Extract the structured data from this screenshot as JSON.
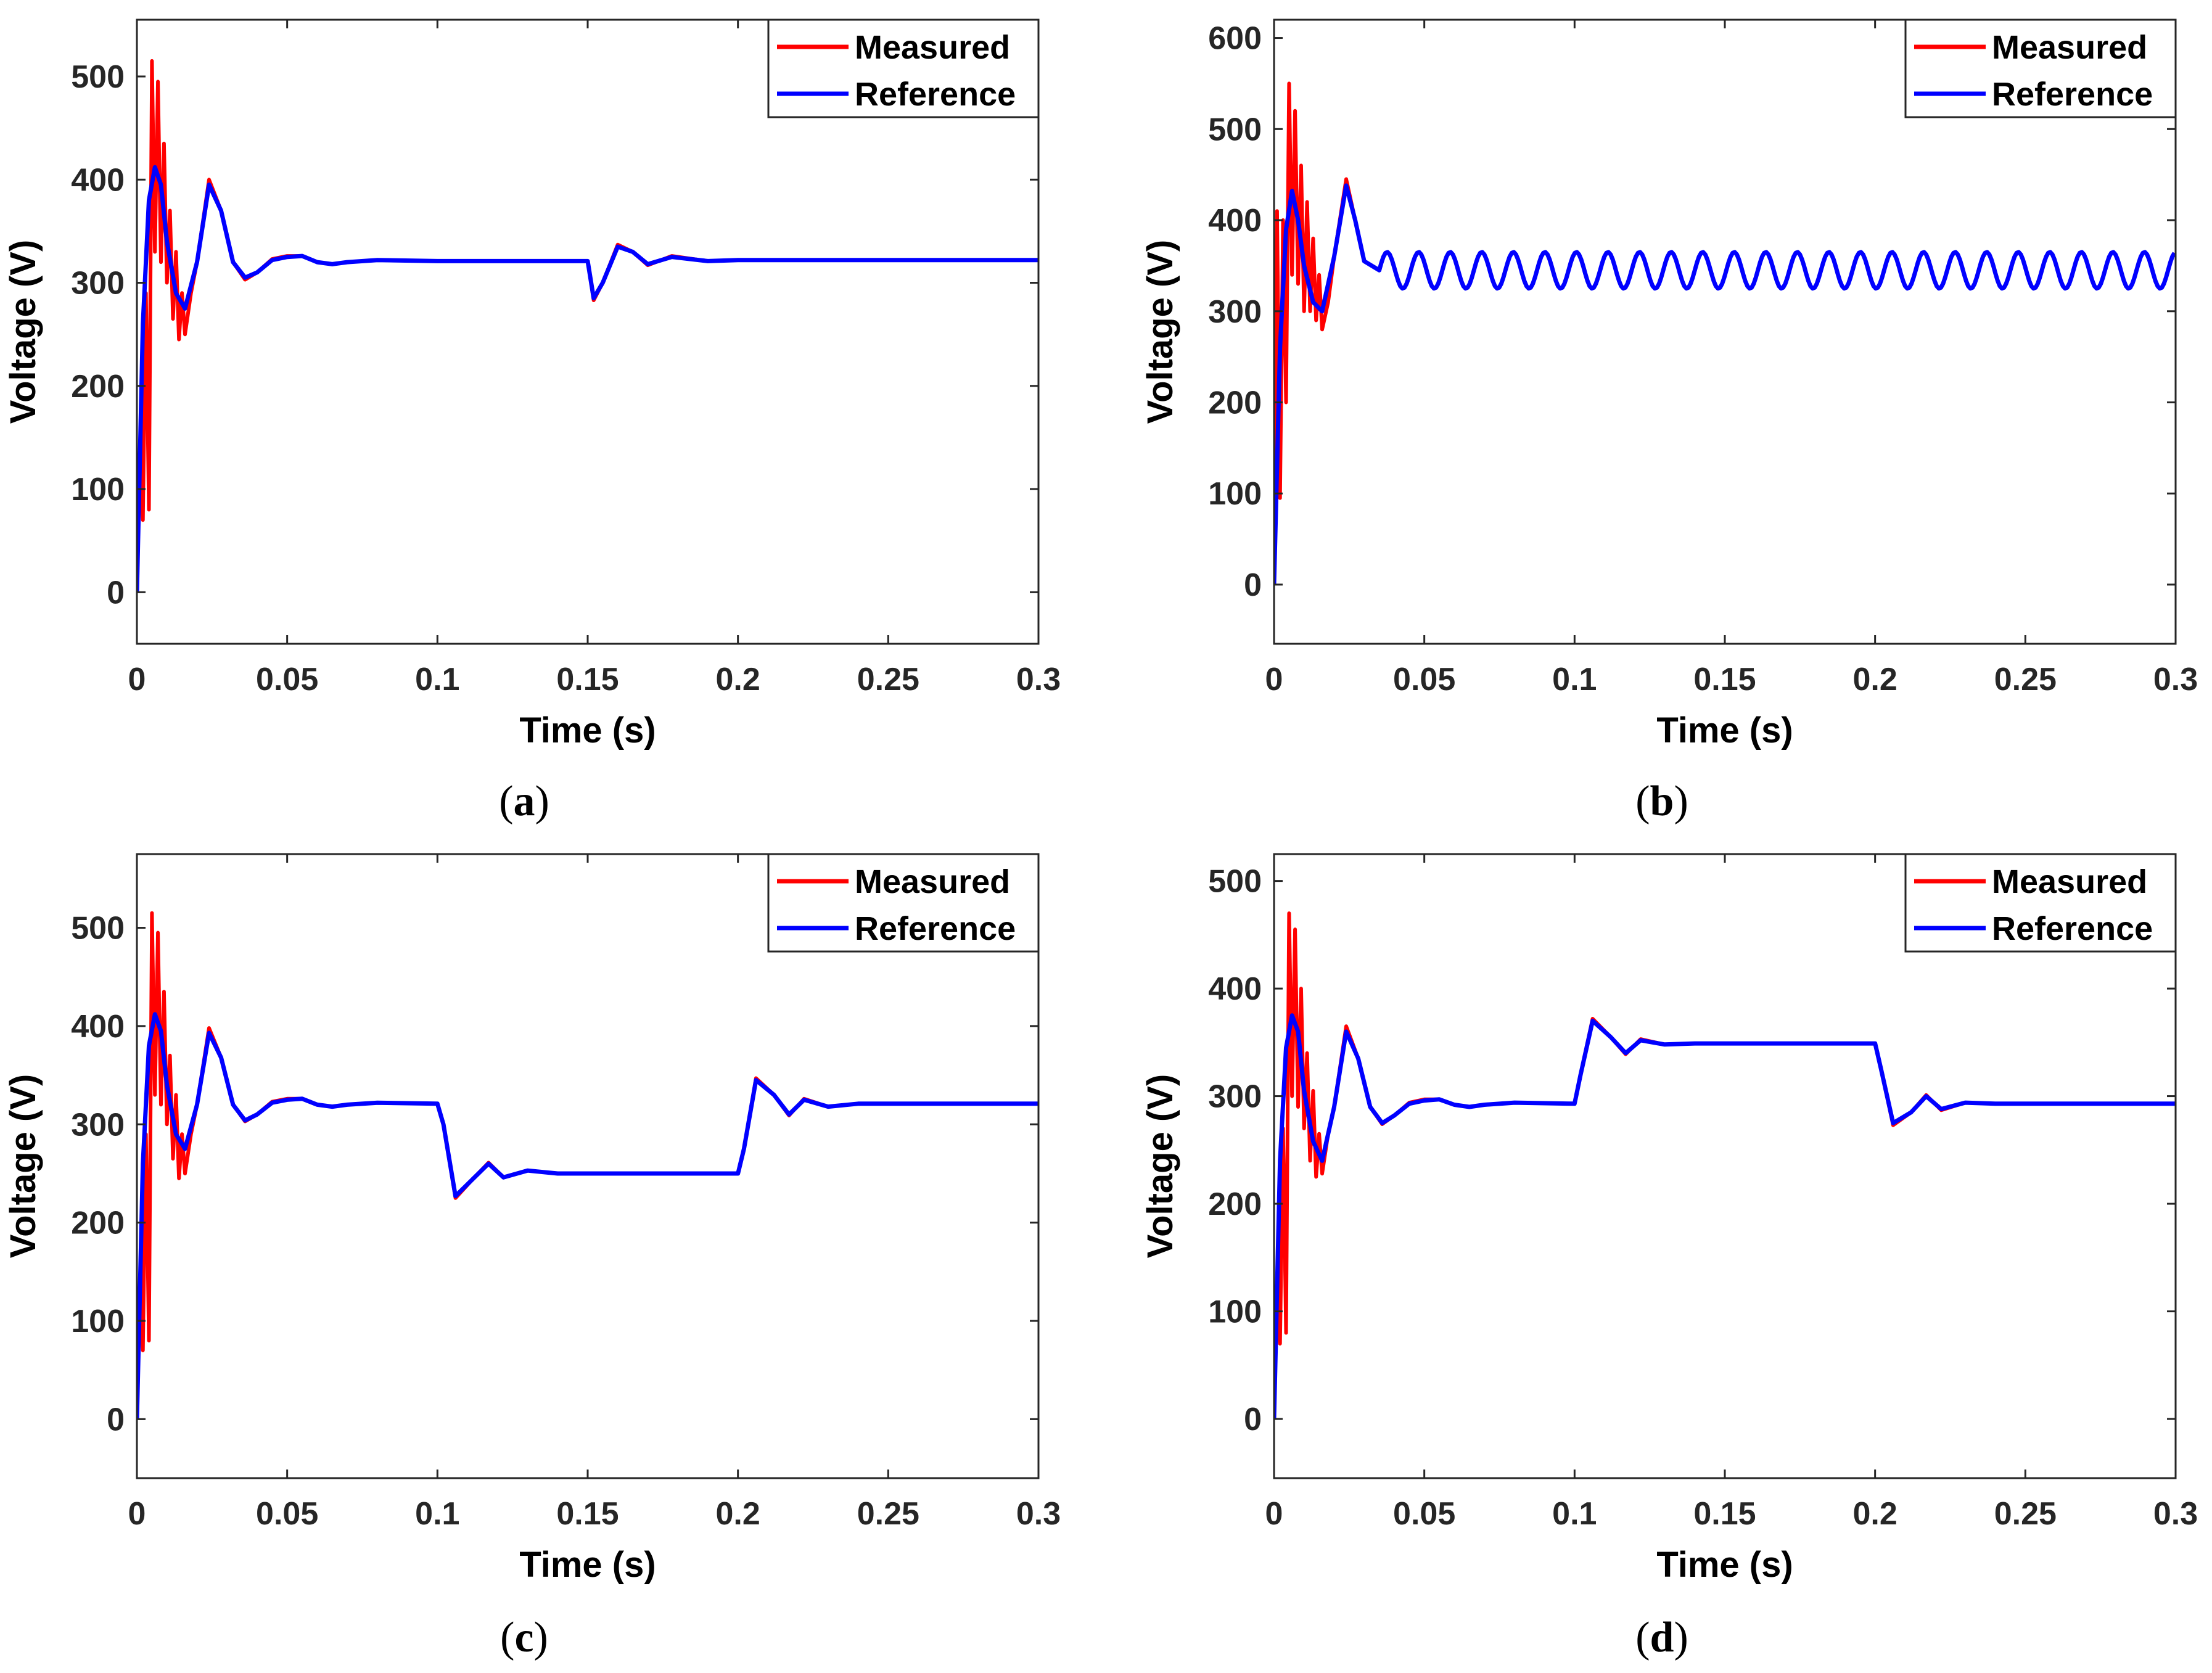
{
  "colors": {
    "measured": "#ff0000",
    "reference": "#0000ff",
    "axes": "#262626",
    "background": "#ffffff"
  },
  "chart_data": [
    {
      "id": "a",
      "type": "line",
      "caption": {
        "open": "(",
        "letter": "a",
        "close": ")"
      },
      "xlabel": "Time (s)",
      "ylabel": "Voltage (V)",
      "xlim": [
        0,
        0.3
      ],
      "ylim": [
        -50,
        555
      ],
      "xticks": [
        0,
        0.05,
        0.1,
        0.15,
        0.2,
        0.25,
        0.3
      ],
      "xtick_labels": [
        "0",
        "0.05",
        "0.1",
        "0.15",
        "0.2",
        "0.25",
        "0.3"
      ],
      "yticks": [
        0,
        100,
        200,
        300,
        400,
        500
      ],
      "ytick_labels": [
        "0",
        "100",
        "200",
        "300",
        "400",
        "500"
      ],
      "legend": {
        "position": "top-right",
        "entries": [
          "Measured",
          "Reference"
        ]
      },
      "series": [
        {
          "name": "Reference",
          "x": [
            0,
            0.002,
            0.004,
            0.006,
            0.008,
            0.01,
            0.013,
            0.016,
            0.02,
            0.024,
            0.028,
            0.032,
            0.036,
            0.04,
            0.045,
            0.05,
            0.055,
            0.06,
            0.065,
            0.07,
            0.08,
            0.1,
            0.14,
            0.15,
            0.152,
            0.155,
            0.16,
            0.165,
            0.17,
            0.178,
            0.19,
            0.2,
            0.3
          ],
          "values": [
            0,
            260,
            380,
            412,
            395,
            340,
            290,
            275,
            320,
            395,
            370,
            320,
            305,
            310,
            322,
            325,
            326,
            320,
            318,
            320,
            322,
            321,
            321,
            321,
            285,
            300,
            335,
            330,
            318,
            325,
            321,
            322,
            322
          ]
        },
        {
          "name": "Measured",
          "x": [
            0,
            0.001,
            0.002,
            0.003,
            0.004,
            0.005,
            0.006,
            0.007,
            0.008,
            0.009,
            0.01,
            0.011,
            0.012,
            0.013,
            0.014,
            0.015,
            0.016,
            0.018,
            0.02,
            0.024,
            0.028,
            0.032,
            0.036,
            0.04,
            0.045,
            0.05,
            0.055,
            0.06,
            0.065,
            0.07,
            0.08,
            0.1,
            0.14,
            0.15,
            0.152,
            0.155,
            0.16,
            0.165,
            0.17,
            0.178,
            0.19,
            0.2,
            0.3
          ],
          "values": [
            0,
            130,
            70,
            290,
            80,
            515,
            330,
            495,
            320,
            435,
            300,
            370,
            265,
            330,
            245,
            290,
            250,
            290,
            320,
            400,
            370,
            320,
            303,
            310,
            323,
            326,
            326,
            320,
            318,
            320,
            322,
            321,
            321,
            321,
            283,
            300,
            337,
            330,
            317,
            326,
            321,
            322,
            322
          ]
        }
      ]
    },
    {
      "id": "b",
      "type": "line",
      "caption": {
        "open": "(",
        "letter": "b",
        "close": ")"
      },
      "xlabel": "Time (s)",
      "ylabel": "Voltage (V)",
      "xlim": [
        0,
        0.3
      ],
      "ylim": [
        -65,
        620
      ],
      "xticks": [
        0,
        0.05,
        0.1,
        0.15,
        0.2,
        0.25,
        0.3
      ],
      "xtick_labels": [
        "0",
        "0.05",
        "0.1",
        "0.15",
        "0.2",
        "0.25",
        "0.3"
      ],
      "yticks": [
        0,
        100,
        200,
        300,
        400,
        500,
        600
      ],
      "ytick_labels": [
        "0",
        "100",
        "200",
        "300",
        "400",
        "500",
        "600"
      ],
      "legend": {
        "position": "top-right",
        "entries": [
          "Measured",
          "Reference"
        ]
      },
      "oscillation": {
        "start": 0.035,
        "center": 345,
        "amplitude": 20,
        "period": 0.0105
      },
      "series": [
        {
          "name": "Reference",
          "x": [
            0,
            0.002,
            0.004,
            0.006,
            0.008,
            0.01,
            0.013,
            0.016,
            0.02,
            0.024,
            0.027,
            0.03,
            0.035
          ],
          "values": [
            0,
            260,
            390,
            432,
            400,
            350,
            310,
            300,
            360,
            438,
            400,
            355,
            345
          ]
        },
        {
          "name": "Measured",
          "x": [
            0,
            0.001,
            0.002,
            0.003,
            0.004,
            0.005,
            0.006,
            0.007,
            0.008,
            0.009,
            0.01,
            0.011,
            0.012,
            0.013,
            0.014,
            0.015,
            0.016,
            0.018,
            0.02,
            0.024,
            0.027,
            0.03,
            0.035
          ],
          "values": [
            0,
            410,
            95,
            400,
            200,
            550,
            340,
            520,
            330,
            460,
            300,
            420,
            300,
            380,
            290,
            340,
            280,
            310,
            360,
            445,
            400,
            355,
            345
          ]
        }
      ]
    },
    {
      "id": "c",
      "type": "line",
      "caption": {
        "open": "(",
        "letter": "c",
        "close": ")"
      },
      "xlabel": "Time (s)",
      "ylabel": "Voltage (V)",
      "xlim": [
        0,
        0.3
      ],
      "ylim": [
        -60,
        575
      ],
      "xticks": [
        0,
        0.05,
        0.1,
        0.15,
        0.2,
        0.25,
        0.3
      ],
      "xtick_labels": [
        "0",
        "0.05",
        "0.1",
        "0.15",
        "0.2",
        "0.25",
        "0.3"
      ],
      "yticks": [
        0,
        100,
        200,
        300,
        400,
        500
      ],
      "ytick_labels": [
        "0",
        "100",
        "200",
        "300",
        "400",
        "500"
      ],
      "legend": {
        "position": "top-right",
        "entries": [
          "Measured",
          "Reference"
        ]
      },
      "series": [
        {
          "name": "Reference",
          "x": [
            0,
            0.002,
            0.004,
            0.006,
            0.008,
            0.01,
            0.013,
            0.016,
            0.02,
            0.024,
            0.028,
            0.032,
            0.036,
            0.04,
            0.045,
            0.05,
            0.055,
            0.06,
            0.065,
            0.07,
            0.08,
            0.1,
            0.102,
            0.106,
            0.112,
            0.117,
            0.122,
            0.13,
            0.14,
            0.2,
            0.202,
            0.206,
            0.212,
            0.217,
            0.222,
            0.23,
            0.24,
            0.3
          ],
          "values": [
            0,
            260,
            380,
            412,
            395,
            340,
            290,
            275,
            320,
            393,
            368,
            320,
            304,
            310,
            322,
            325,
            326,
            320,
            318,
            320,
            322,
            321,
            300,
            227,
            245,
            260,
            246,
            253,
            250,
            250,
            275,
            345,
            330,
            310,
            325,
            318,
            321,
            321
          ]
        },
        {
          "name": "Measured",
          "x": [
            0,
            0.001,
            0.002,
            0.003,
            0.004,
            0.005,
            0.006,
            0.007,
            0.008,
            0.009,
            0.01,
            0.011,
            0.012,
            0.013,
            0.014,
            0.015,
            0.016,
            0.018,
            0.02,
            0.024,
            0.028,
            0.032,
            0.036,
            0.04,
            0.045,
            0.05,
            0.055,
            0.06,
            0.065,
            0.07,
            0.08,
            0.1,
            0.102,
            0.106,
            0.112,
            0.117,
            0.122,
            0.13,
            0.14,
            0.2,
            0.202,
            0.206,
            0.212,
            0.217,
            0.222,
            0.23,
            0.24,
            0.3
          ],
          "values": [
            0,
            130,
            70,
            290,
            80,
            515,
            330,
            495,
            320,
            435,
            300,
            370,
            265,
            330,
            245,
            290,
            250,
            290,
            320,
            398,
            368,
            320,
            303,
            310,
            323,
            326,
            326,
            320,
            318,
            320,
            322,
            321,
            300,
            225,
            245,
            261,
            246,
            253,
            250,
            250,
            275,
            347,
            330,
            309,
            326,
            318,
            321,
            321
          ]
        }
      ]
    },
    {
      "id": "d",
      "type": "line",
      "caption": {
        "open": "(",
        "letter": "d",
        "close": ")"
      },
      "xlabel": "Time (s)",
      "ylabel": "Voltage (V)",
      "xlim": [
        0,
        0.3
      ],
      "ylim": [
        -55,
        525
      ],
      "xticks": [
        0,
        0.05,
        0.1,
        0.15,
        0.2,
        0.25,
        0.3
      ],
      "xtick_labels": [
        "0",
        "0.05",
        "0.1",
        "0.15",
        "0.2",
        "0.25",
        "0.3"
      ],
      "yticks": [
        0,
        100,
        200,
        300,
        400,
        500
      ],
      "ytick_labels": [
        "0",
        "100",
        "200",
        "300",
        "400",
        "500"
      ],
      "legend": {
        "position": "top-right",
        "entries": [
          "Measured",
          "Reference"
        ]
      },
      "series": [
        {
          "name": "Reference",
          "x": [
            0,
            0.002,
            0.004,
            0.006,
            0.008,
            0.01,
            0.013,
            0.016,
            0.02,
            0.024,
            0.028,
            0.032,
            0.036,
            0.04,
            0.045,
            0.05,
            0.055,
            0.06,
            0.065,
            0.07,
            0.08,
            0.1,
            0.102,
            0.106,
            0.112,
            0.117,
            0.122,
            0.13,
            0.14,
            0.2,
            0.202,
            0.206,
            0.212,
            0.217,
            0.222,
            0.23,
            0.24,
            0.3
          ],
          "values": [
            0,
            240,
            345,
            375,
            360,
            305,
            258,
            240,
            290,
            360,
            335,
            290,
            275,
            282,
            293,
            296,
            297,
            292,
            290,
            292,
            294,
            293,
            320,
            370,
            355,
            340,
            352,
            348,
            349,
            349,
            325,
            275,
            285,
            300,
            288,
            294,
            293,
            293
          ]
        },
        {
          "name": "Measured",
          "x": [
            0,
            0.001,
            0.002,
            0.003,
            0.004,
            0.005,
            0.006,
            0.007,
            0.008,
            0.009,
            0.01,
            0.011,
            0.012,
            0.013,
            0.014,
            0.015,
            0.016,
            0.018,
            0.02,
            0.024,
            0.028,
            0.032,
            0.036,
            0.04,
            0.045,
            0.05,
            0.055,
            0.06,
            0.065,
            0.07,
            0.08,
            0.1,
            0.102,
            0.106,
            0.112,
            0.117,
            0.122,
            0.13,
            0.14,
            0.2,
            0.202,
            0.206,
            0.212,
            0.217,
            0.222,
            0.23,
            0.24,
            0.3
          ],
          "values": [
            0,
            120,
            70,
            270,
            80,
            470,
            300,
            455,
            290,
            400,
            270,
            340,
            240,
            305,
            225,
            265,
            228,
            265,
            290,
            365,
            335,
            290,
            274,
            282,
            294,
            297,
            297,
            292,
            290,
            292,
            294,
            293,
            320,
            372,
            355,
            339,
            353,
            348,
            349,
            349,
            325,
            273,
            285,
            301,
            287,
            294,
            293,
            293
          ]
        }
      ]
    }
  ]
}
